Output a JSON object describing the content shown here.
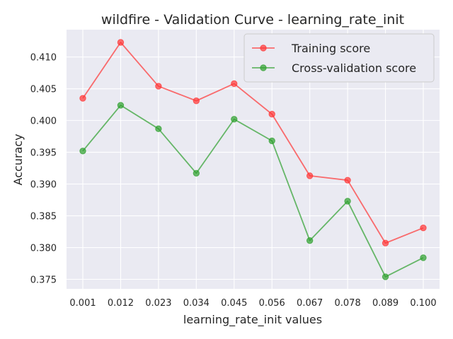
{
  "chart_data": {
    "type": "line",
    "title": "wildfire - Validation Curve - learning_rate_init",
    "xlabel": "learning_rate_init values",
    "ylabel": "Accuracy",
    "categories": [
      "0.001",
      "0.012",
      "0.023",
      "0.034",
      "0.045",
      "0.056",
      "0.067",
      "0.078",
      "0.089",
      "0.100"
    ],
    "ylim": [
      0.3735,
      0.4143
    ],
    "yticks": [
      "0.375",
      "0.380",
      "0.385",
      "0.390",
      "0.395",
      "0.400",
      "0.405",
      "0.410"
    ],
    "grid": true,
    "legend_position": "top-right",
    "series": [
      {
        "name": "Training score",
        "color": "#ff3333",
        "values": [
          0.4035,
          0.4123,
          0.4054,
          0.4031,
          0.4058,
          0.401,
          0.3913,
          0.3906,
          0.3807,
          0.3831
        ]
      },
      {
        "name": "Cross-validation score",
        "color": "#2ca02c",
        "values": [
          0.3952,
          0.4024,
          0.3987,
          0.3917,
          0.4002,
          0.3968,
          0.3811,
          0.3873,
          0.3754,
          0.3784
        ]
      }
    ]
  }
}
